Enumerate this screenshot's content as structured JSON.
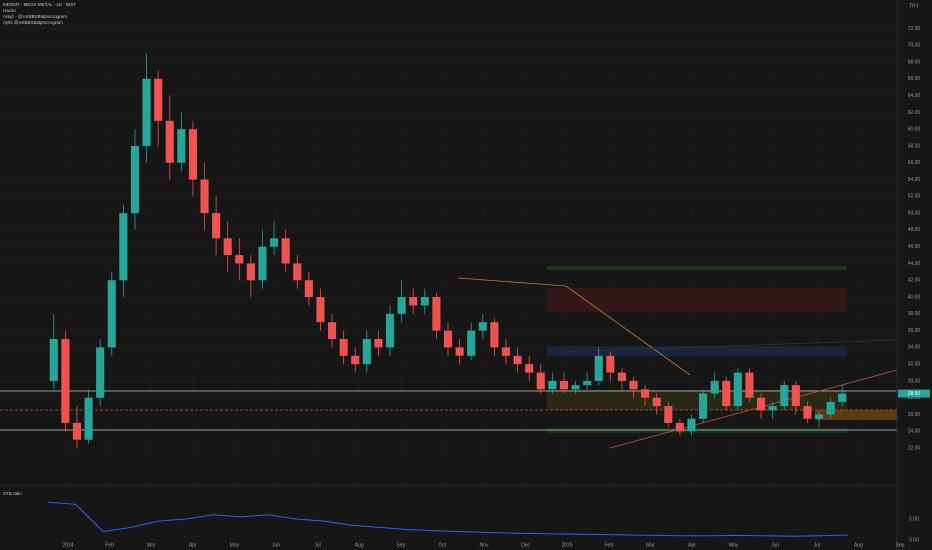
{
  "header": {
    "line1": "MEGMT · MEGA METAL · 1D · BIST",
    "line2": "Hacim",
    "line3": "Anlyz · @AKBBSBalpmcrogram",
    "line4": "Aylık @AKBBSBalpmcrogram"
  },
  "chart_data": [
    {
      "type": "candlestick",
      "ohlc": [
        [
          30,
          38,
          29,
          35
        ],
        [
          35,
          36,
          24,
          25
        ],
        [
          25,
          27,
          22,
          23
        ],
        [
          23,
          29,
          22.5,
          28
        ],
        [
          28,
          35,
          27,
          34
        ],
        [
          34,
          43,
          33,
          42
        ],
        [
          42,
          51,
          40,
          50
        ],
        [
          50,
          60,
          48,
          58
        ],
        [
          58,
          69,
          56,
          66
        ],
        [
          66,
          67,
          58,
          61
        ],
        [
          61,
          64,
          54,
          56
        ],
        [
          56,
          62,
          55,
          60
        ],
        [
          60,
          61,
          52,
          54
        ],
        [
          54,
          56,
          48,
          50
        ],
        [
          50,
          52,
          45,
          47
        ],
        [
          47,
          49,
          43,
          45
        ],
        [
          45,
          47,
          42,
          44
        ],
        [
          44,
          45,
          40,
          42
        ],
        [
          42,
          48,
          41,
          46
        ],
        [
          46,
          49,
          45,
          47
        ],
        [
          47,
          48,
          43,
          44
        ],
        [
          44,
          45,
          41,
          42
        ],
        [
          42,
          43,
          39,
          40
        ],
        [
          40,
          41,
          36,
          37
        ],
        [
          37,
          38,
          34,
          35
        ],
        [
          35,
          36,
          32,
          33
        ],
        [
          33,
          34,
          31,
          32
        ],
        [
          32,
          36,
          31,
          35
        ],
        [
          35,
          36,
          33,
          34
        ],
        [
          34,
          39,
          33,
          38
        ],
        [
          38,
          42,
          37,
          40
        ],
        [
          40,
          41,
          38,
          39
        ],
        [
          39,
          41,
          38,
          40
        ],
        [
          40,
          40.5,
          35,
          36
        ],
        [
          36,
          37,
          33,
          34
        ],
        [
          34,
          35,
          32,
          33
        ],
        [
          33,
          37,
          32.5,
          36
        ],
        [
          36,
          38,
          35,
          37
        ],
        [
          37,
          37.5,
          33,
          34
        ],
        [
          34,
          35,
          32,
          33
        ],
        [
          33,
          34,
          31,
          32
        ],
        [
          32,
          33,
          30,
          31
        ],
        [
          31,
          32,
          28.5,
          29
        ],
        [
          29,
          31,
          28.5,
          30
        ],
        [
          30,
          31,
          28.5,
          29
        ],
        [
          29,
          30,
          28.5,
          29.5
        ],
        [
          29.5,
          31,
          29,
          30
        ],
        [
          30,
          34,
          29.5,
          33
        ],
        [
          33,
          33.5,
          30,
          31
        ],
        [
          31,
          31.5,
          29,
          30
        ],
        [
          30,
          30.5,
          28,
          29
        ],
        [
          29,
          29.5,
          27,
          28
        ],
        [
          28,
          28.5,
          26,
          27
        ],
        [
          27,
          27.5,
          24.5,
          25
        ],
        [
          25,
          25.5,
          23.5,
          24
        ],
        [
          24,
          26,
          23.5,
          25.5
        ],
        [
          25.5,
          29,
          25,
          28.5
        ],
        [
          28.5,
          31,
          28,
          30
        ],
        [
          30,
          30.5,
          26.5,
          27
        ],
        [
          27,
          31.5,
          26.5,
          31
        ],
        [
          31,
          31.5,
          27.5,
          28
        ],
        [
          28,
          28.5,
          25.5,
          26.5
        ],
        [
          26.5,
          27.5,
          25.5,
          27
        ],
        [
          27,
          30,
          26.5,
          29.5
        ],
        [
          29.5,
          30,
          26,
          27
        ],
        [
          27,
          27.5,
          25,
          25.5
        ],
        [
          25.5,
          26.5,
          24.5,
          26
        ],
        [
          26,
          28,
          25.5,
          27.5
        ],
        [
          27.5,
          29.5,
          27,
          28.5
        ]
      ],
      "up_color": "#26a69a",
      "down_color": "#ef5350",
      "ylim": [
        17.6,
        75.4
      ],
      "yticks": [
        {
          "value": 22,
          "label": "22.00"
        },
        {
          "value": 24,
          "label": "24.00"
        },
        {
          "value": 26,
          "label": "26.00"
        },
        {
          "value": 28,
          "label": "28.00"
        },
        {
          "value": 30,
          "label": "30.00"
        },
        {
          "value": 32,
          "label": "32.00"
        },
        {
          "value": 34,
          "label": "34.00"
        },
        {
          "value": 36,
          "label": "36.00"
        },
        {
          "value": 38,
          "label": "38.00"
        },
        {
          "value": 40,
          "label": "40.00"
        },
        {
          "value": 42,
          "label": "42.00"
        },
        {
          "value": 44,
          "label": "44.00"
        },
        {
          "value": 46,
          "label": "46.00"
        },
        {
          "value": 48,
          "label": "48.00"
        },
        {
          "value": 50,
          "label": "50.00"
        },
        {
          "value": 52,
          "label": "52.00"
        },
        {
          "value": 54,
          "label": "54.00"
        },
        {
          "value": 56,
          "label": "56.00"
        },
        {
          "value": 58,
          "label": "58.00"
        },
        {
          "value": 60,
          "label": "60.00"
        },
        {
          "value": 62,
          "label": "62.00"
        },
        {
          "value": 64,
          "label": "64.00"
        },
        {
          "value": 66,
          "label": "66.00"
        },
        {
          "value": 68,
          "label": "68.00"
        },
        {
          "value": 70,
          "label": "70.00"
        },
        {
          "value": 72,
          "label": "72.00"
        }
      ],
      "last_price": 28.5,
      "last_price_label": "28.50",
      "currency": "TRY",
      "xticklabels": [
        "2024",
        "Feb",
        "Mar",
        "Apr",
        "May",
        "Jun",
        "Jul",
        "Aug",
        "Sep",
        "Oct",
        "Nov",
        "Dec",
        "2025",
        "Feb",
        "Mar",
        "Apr",
        "May",
        "Jun",
        "Jul",
        "Aug",
        "Sep"
      ],
      "grid": true
    },
    {
      "type": "line",
      "title": "STB ratio",
      "color": "#2962ff",
      "values": [
        9,
        8.5,
        2,
        3,
        4.5,
        5,
        6,
        5.5,
        6,
        5,
        4.5,
        3.5,
        3,
        2.5,
        2.2,
        2,
        1.8,
        1.6,
        1.5,
        1.4,
        1.3,
        1.2,
        1.1,
        1,
        1,
        1.1,
        1,
        0.9,
        1,
        1.2
      ],
      "ylim": [
        0,
        10
      ],
      "yticks": [
        {
          "value": 0,
          "label": "0.00"
        },
        {
          "value": 5,
          "label": "5.00"
        }
      ]
    }
  ]
}
